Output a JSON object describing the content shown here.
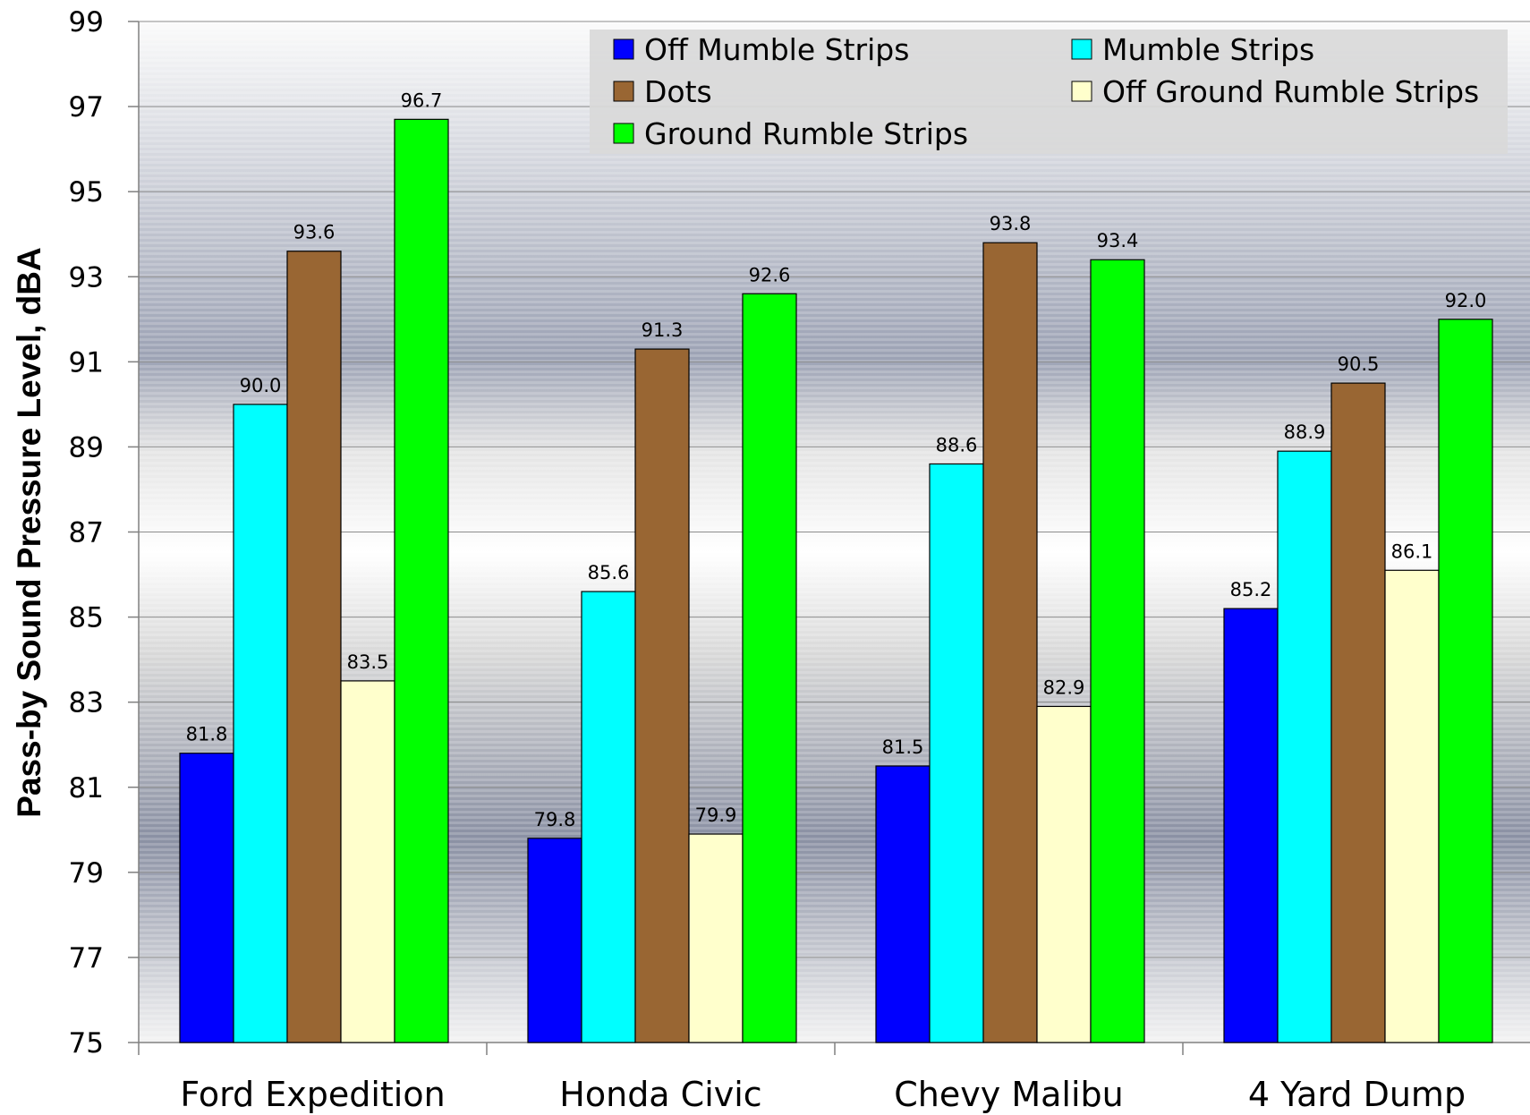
{
  "chart_data": {
    "type": "bar",
    "ylabel": "Pass-by  Sound Pressure Level, dBA",
    "xlabel": "",
    "ylim": [
      75,
      99
    ],
    "yticks": [
      75,
      77,
      79,
      81,
      83,
      85,
      87,
      89,
      91,
      93,
      95,
      97,
      99
    ],
    "categories": [
      "Ford Expedition",
      "Honda Civic",
      "Chevy Malibu",
      "4 Yard Dump"
    ],
    "series": [
      {
        "name": "Off Mumble Strips",
        "color": "#0000ff",
        "values": [
          81.8,
          79.8,
          81.5,
          85.2
        ],
        "labels": [
          "81.8",
          "79.8",
          "81.5",
          "85.2"
        ]
      },
      {
        "name": "Mumble Strips",
        "color": "#00ffff",
        "values": [
          90.0,
          85.6,
          88.6,
          88.9
        ],
        "labels": [
          "90.0",
          "85.6",
          "88.6",
          "88.9"
        ]
      },
      {
        "name": "Dots",
        "color": "#996633",
        "values": [
          93.6,
          91.3,
          93.8,
          90.5
        ],
        "labels": [
          "93.6",
          "91.3",
          "93.8",
          "90.5"
        ]
      },
      {
        "name": "Off Ground Rumble Strips",
        "color": "#ffffcc",
        "values": [
          83.5,
          79.9,
          82.9,
          86.1
        ],
        "labels": [
          "83.5",
          "79.9",
          "82.9",
          "86.1"
        ]
      },
      {
        "name": "Ground Rumble Strips",
        "color": "#00ff00",
        "values": [
          96.7,
          92.6,
          93.4,
          92.0
        ],
        "labels": [
          "96.7",
          "92.6",
          "93.4",
          "92.0"
        ]
      }
    ],
    "legend": {
      "placement": "top-right",
      "order": [
        0,
        1,
        2,
        3,
        4
      ]
    },
    "grid": true,
    "data_labels": true
  }
}
